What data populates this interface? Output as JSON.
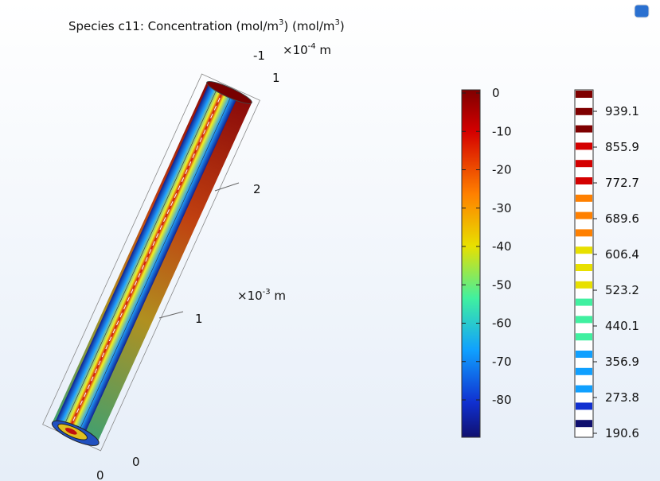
{
  "title_parts": [
    "Species c11:  Concentration (mol/m",
    "3",
    ")   (mol/m",
    "3",
    ")"
  ],
  "axes": [
    {
      "scale": [
        "×10",
        "-4",
        " m"
      ],
      "ticks": [
        "-1",
        "1"
      ]
    },
    {
      "scale": [
        "×10",
        "-3",
        " m"
      ],
      "ticks": [
        "2",
        "1",
        "0"
      ]
    },
    {
      "ticks": [
        "0"
      ]
    }
  ],
  "colorbars": [
    {
      "ticks": [
        0,
        -10,
        -20,
        -30,
        -40,
        -50,
        -60,
        -70,
        -80
      ]
    },
    {
      "ticks": [
        939.1,
        855.9,
        772.7,
        689.6,
        606.4,
        523.2,
        440.1,
        356.9,
        273.8,
        190.6
      ]
    }
  ]
}
